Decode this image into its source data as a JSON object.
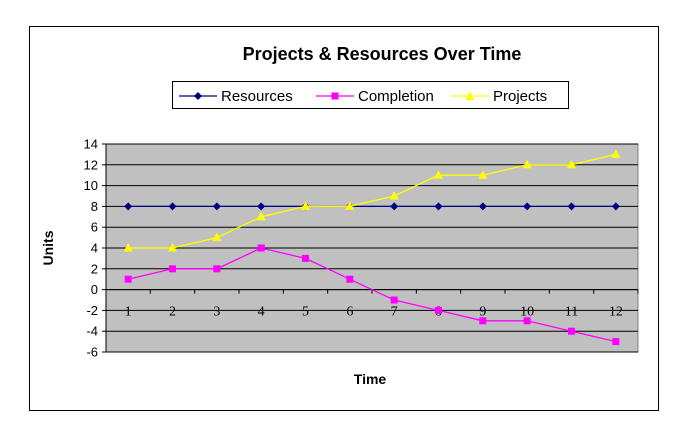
{
  "chart_data": {
    "type": "line",
    "title": "Projects & Resources Over Time",
    "xlabel": "Time",
    "ylabel": "Units",
    "categories": [
      "1",
      "2",
      "3",
      "4",
      "5",
      "6",
      "7",
      "8",
      "9",
      "10",
      "11",
      "12"
    ],
    "ylim": [
      -6,
      14
    ],
    "yticks": [
      "14",
      "12",
      "10",
      "8",
      "6",
      "4",
      "2",
      "0",
      "-2",
      "-4",
      "-6"
    ],
    "grid": true,
    "legend_placement": "top",
    "plot_background": "#c0c0c0",
    "series": [
      {
        "name": "Resources",
        "color": "#000080",
        "marker": "diamond",
        "values": [
          8,
          8,
          8,
          8,
          8,
          8,
          8,
          8,
          8,
          8,
          8,
          8
        ]
      },
      {
        "name": "Completion",
        "color": "#ff00ff",
        "marker": "square",
        "values": [
          1,
          2,
          2,
          4,
          3,
          1,
          -1,
          -2,
          -3,
          -3,
          -4,
          -5
        ]
      },
      {
        "name": "Projects",
        "color": "#ffff00",
        "marker": "triangle",
        "values": [
          4,
          4,
          5,
          7,
          8,
          8,
          9,
          11,
          11,
          12,
          12,
          13
        ]
      }
    ]
  }
}
